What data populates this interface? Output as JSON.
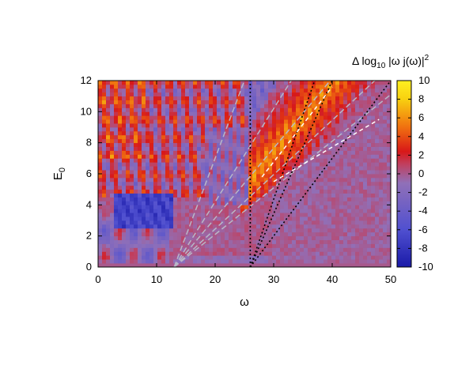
{
  "chart_data": {
    "type": "heatmap",
    "title": "",
    "xlabel": "ω",
    "ylabel": "E",
    "ylabel_sub": "0",
    "xlim": [
      0,
      50
    ],
    "ylim": [
      0,
      12
    ],
    "xticks": [
      "0",
      "10",
      "20",
      "30",
      "40",
      "50"
    ],
    "yticks": [
      "0",
      "2",
      "4",
      "6",
      "8",
      "10",
      "12"
    ],
    "colorbar": {
      "title_prefix": "Δ log",
      "title_sub": "10",
      "title_mid": " |ω j(ω)|",
      "title_sup": "2",
      "range": [
        -10,
        10
      ],
      "ticks": [
        "10",
        "8",
        "6",
        "4",
        "2",
        "0",
        "-2",
        "-4",
        "-6",
        "-8",
        "-10"
      ],
      "colors": [
        "#1a1aa8",
        "#5050d0",
        "#9070b8",
        "#c04060",
        "#d81818",
        "#f07010",
        "#f8d010",
        "#fff020"
      ]
    },
    "regions": [
      {
        "name": "background",
        "value": 0
      },
      {
        "name": "blue-block",
        "x": [
          3,
          13
        ],
        "y": [
          2.6,
          4.8
        ],
        "value": -7
      },
      {
        "name": "high-band",
        "x": [
          25,
          48
        ],
        "y": [
          4.6,
          9.2
        ],
        "value": 4
      }
    ],
    "guide_lines": {
      "gray_dashed_origin": [
        13,
        0
      ],
      "gray_dashed_slopes": [
        1.0,
        0.6,
        0.45,
        0.35,
        0.3
      ],
      "black_dotted_origin": [
        26,
        0
      ],
      "black_dotted_endpoints": [
        [
          26,
          12
        ],
        [
          37,
          12
        ],
        [
          40,
          12
        ],
        [
          50,
          12
        ]
      ],
      "white_dashed": [
        [
          [
            28,
            5.8
          ],
          [
            40,
            11.6
          ]
        ],
        [
          [
            30,
            5.5
          ],
          [
            48,
            9.5
          ]
        ]
      ]
    }
  }
}
